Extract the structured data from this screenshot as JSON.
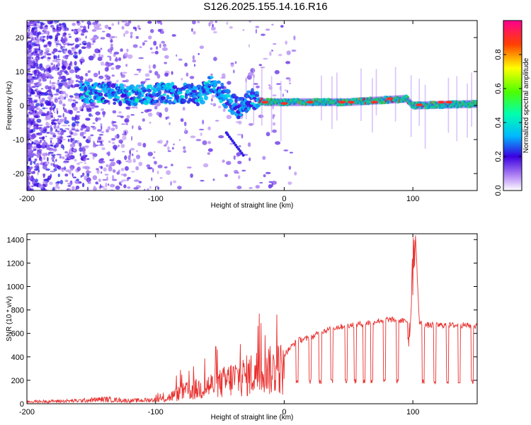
{
  "title": "S126.2025.155.14.16.R16",
  "chart_data": [
    {
      "type": "heatmap",
      "xlabel": "Height of straight line (km)",
      "ylabel": "Frequency (Hz)",
      "xlim": [
        -200,
        150
      ],
      "ylim": [
        -25,
        25
      ],
      "x_ticks": [
        "-200",
        "-100",
        "0",
        "100"
      ],
      "y_ticks": [
        "-20",
        "-10",
        "0",
        "10",
        "20"
      ],
      "colorbar": {
        "label": "Normalized spectral amplitude",
        "range": [
          0,
          1
        ],
        "ticks": [
          "0.0",
          "0.2",
          "0.4",
          "0.6",
          "0.8"
        ]
      },
      "ridge": {
        "description_points": [
          {
            "x": -150,
            "y": 4
          },
          {
            "x": -120,
            "y": 3
          },
          {
            "x": -100,
            "y": 3.5
          },
          {
            "x": -80,
            "y": 3.5
          },
          {
            "x": -65,
            "y": 3
          },
          {
            "x": -55,
            "y": 7
          },
          {
            "x": -45,
            "y": 2
          },
          {
            "x": -35,
            "y": -1
          },
          {
            "x": -25,
            "y": 2
          },
          {
            "x": -15,
            "y": 1
          },
          {
            "x": 0,
            "y": 1
          },
          {
            "x": 50,
            "y": 1
          },
          {
            "x": 95,
            "y": 2
          },
          {
            "x": 100,
            "y": 0
          },
          {
            "x": 150,
            "y": 0.5
          }
        ]
      }
    },
    {
      "type": "line",
      "xlabel": "Height of straight line (km)",
      "ylabel": "SNR (10 * v/v)",
      "xlim": [
        -200,
        150
      ],
      "ylim": [
        0,
        1450
      ],
      "x_ticks": [
        "-200",
        "-100",
        "0",
        "100"
      ],
      "y_ticks": [
        "0",
        "200",
        "400",
        "600",
        "800",
        "1000",
        "1200",
        "1400"
      ],
      "color": "#e8312f",
      "x": [
        -200,
        -180,
        -160,
        -140,
        -120,
        -100,
        -90,
        -80,
        -70,
        -60,
        -50,
        -40,
        -30,
        -20,
        -15,
        -10,
        -5,
        0,
        10,
        20,
        30,
        40,
        50,
        60,
        70,
        80,
        90,
        95,
        100,
        102,
        105,
        110,
        120,
        130,
        140,
        150
      ],
      "y": [
        20,
        25,
        30,
        45,
        30,
        40,
        80,
        150,
        180,
        230,
        260,
        330,
        360,
        420,
        560,
        400,
        500,
        420,
        540,
        560,
        620,
        650,
        670,
        680,
        700,
        720,
        710,
        700,
        760,
        1450,
        690,
        670,
        670,
        670,
        670,
        660
      ]
    }
  ]
}
